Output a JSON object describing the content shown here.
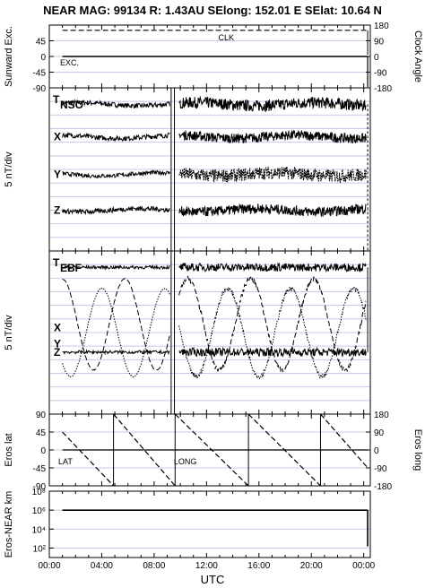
{
  "title": "NEAR MAG: 99134  R: 1.43AU  SElong: 152.01 E  SElat:  10.64 N",
  "xlabel": "UTC",
  "xticks": [
    {
      "value": 0,
      "label": "00:00"
    },
    {
      "value": 4,
      "label": "04:00"
    },
    {
      "value": 8,
      "label": "08:00"
    },
    {
      "value": 12,
      "label": "12:00"
    },
    {
      "value": 16,
      "label": "16:00"
    },
    {
      "value": 20,
      "label": "20:00"
    },
    {
      "value": 24,
      "label": "00:00"
    }
  ],
  "chart_data": [
    {
      "type": "line",
      "panel": "sunward-exc-clock-angle",
      "ylabel_left": "Sunward Exc.",
      "ylabel_right": "Clock Angle",
      "left_ticks": [
        "45",
        "0",
        "-45",
        "-90"
      ],
      "right_ticks": [
        "180",
        "90",
        "0",
        "-90",
        "-180"
      ],
      "ylim_left": [
        -90,
        90
      ],
      "ylim_right": [
        -180,
        180
      ],
      "annotations": [
        "CLK",
        "EXC."
      ],
      "series": [
        {
          "name": "CLK",
          "style": "dashed",
          "x": [
            1.0,
            24.3
          ],
          "y": [
            150,
            150
          ],
          "end_drop": [
            24.3,
            10
          ]
        },
        {
          "name": "EXC.",
          "style": "solid",
          "x": [
            1.0,
            24.3
          ],
          "y": [
            0,
            0
          ],
          "end_drop": [
            24.3,
            -88
          ]
        }
      ]
    },
    {
      "type": "line",
      "panel": "NSO",
      "ylabel": "5 nT/div",
      "label_main": "T",
      "label_sub": "NSO",
      "component_labels": [
        "X",
        "Y",
        "Z"
      ],
      "series": [
        {
          "name": "T",
          "base": 0.9,
          "noise": 0.03,
          "active_noise": 0.07
        },
        {
          "name": "X",
          "base": 0.7,
          "noise": 0.03,
          "active_noise": 0.06
        },
        {
          "name": "Y",
          "base": 0.47,
          "noise": 0.025,
          "active_noise": 0.08
        },
        {
          "name": "Z",
          "base": 0.25,
          "noise": 0.03,
          "active_noise": 0.06
        }
      ]
    },
    {
      "type": "line",
      "panel": "EBF",
      "ylabel": "5 nT/div",
      "label_main": "T",
      "label_sub": "EBF",
      "component_labels": [
        "X",
        "Y",
        "Z"
      ],
      "series": [
        {
          "name": "T",
          "base": 0.9,
          "noise": 0.02
        },
        {
          "name": "X",
          "base": 0.55,
          "amplitude": 0.28,
          "period": 4.8,
          "phase": 0.3
        },
        {
          "name": "Y",
          "base": 0.5,
          "amplitude": 0.27,
          "period": 4.8,
          "phase": 2.6
        },
        {
          "name": "Z",
          "base": 0.38,
          "noise": 0.02
        }
      ]
    },
    {
      "type": "line",
      "panel": "eros-lat-long",
      "ylabel_left": "Eros lat",
      "ylabel_right": "Eros long",
      "left_ticks": [
        "90",
        "45",
        "0",
        "-45",
        "-90"
      ],
      "right_ticks": [
        "180",
        "90",
        "0",
        "-90",
        "-180"
      ],
      "ylim_left": [
        -90,
        90
      ],
      "ylim_right": [
        -180,
        180
      ],
      "annotations": [
        "LAT",
        "LONG"
      ],
      "series": [
        {
          "name": "LAT",
          "style": "solid",
          "x": [
            1.0,
            24.3
          ],
          "y": [
            0,
            0
          ]
        },
        {
          "name": "LONG",
          "style": "dashed",
          "sawtooth": [
            {
              "x": [
                1.0,
                4.9
              ],
              "y": [
                90,
                -180
              ]
            },
            {
              "x": [
                4.9,
                9.6
              ],
              "y": [
                180,
                -180
              ]
            },
            {
              "x": [
                9.6,
                15.2
              ],
              "y": [
                180,
                -180
              ]
            },
            {
              "x": [
                15.2,
                20.7
              ],
              "y": [
                180,
                -180
              ]
            },
            {
              "x": [
                20.7,
                24.3
              ],
              "y": [
                180,
                -90
              ]
            }
          ]
        }
      ]
    },
    {
      "type": "line",
      "panel": "eros-near-distance",
      "ylabel": "Eros-NEAR km",
      "yscale": "log",
      "ylim": [
        10,
        100000000
      ],
      "left_ticks": [
        "10⁸",
        "10⁶",
        "10⁴",
        "10²"
      ],
      "series": [
        {
          "name": "distance",
          "style": "solid",
          "x": [
            1.0,
            24.3
          ],
          "y": [
            1000000,
            1000000
          ],
          "end_drop": [
            24.3,
            150
          ]
        }
      ]
    }
  ]
}
